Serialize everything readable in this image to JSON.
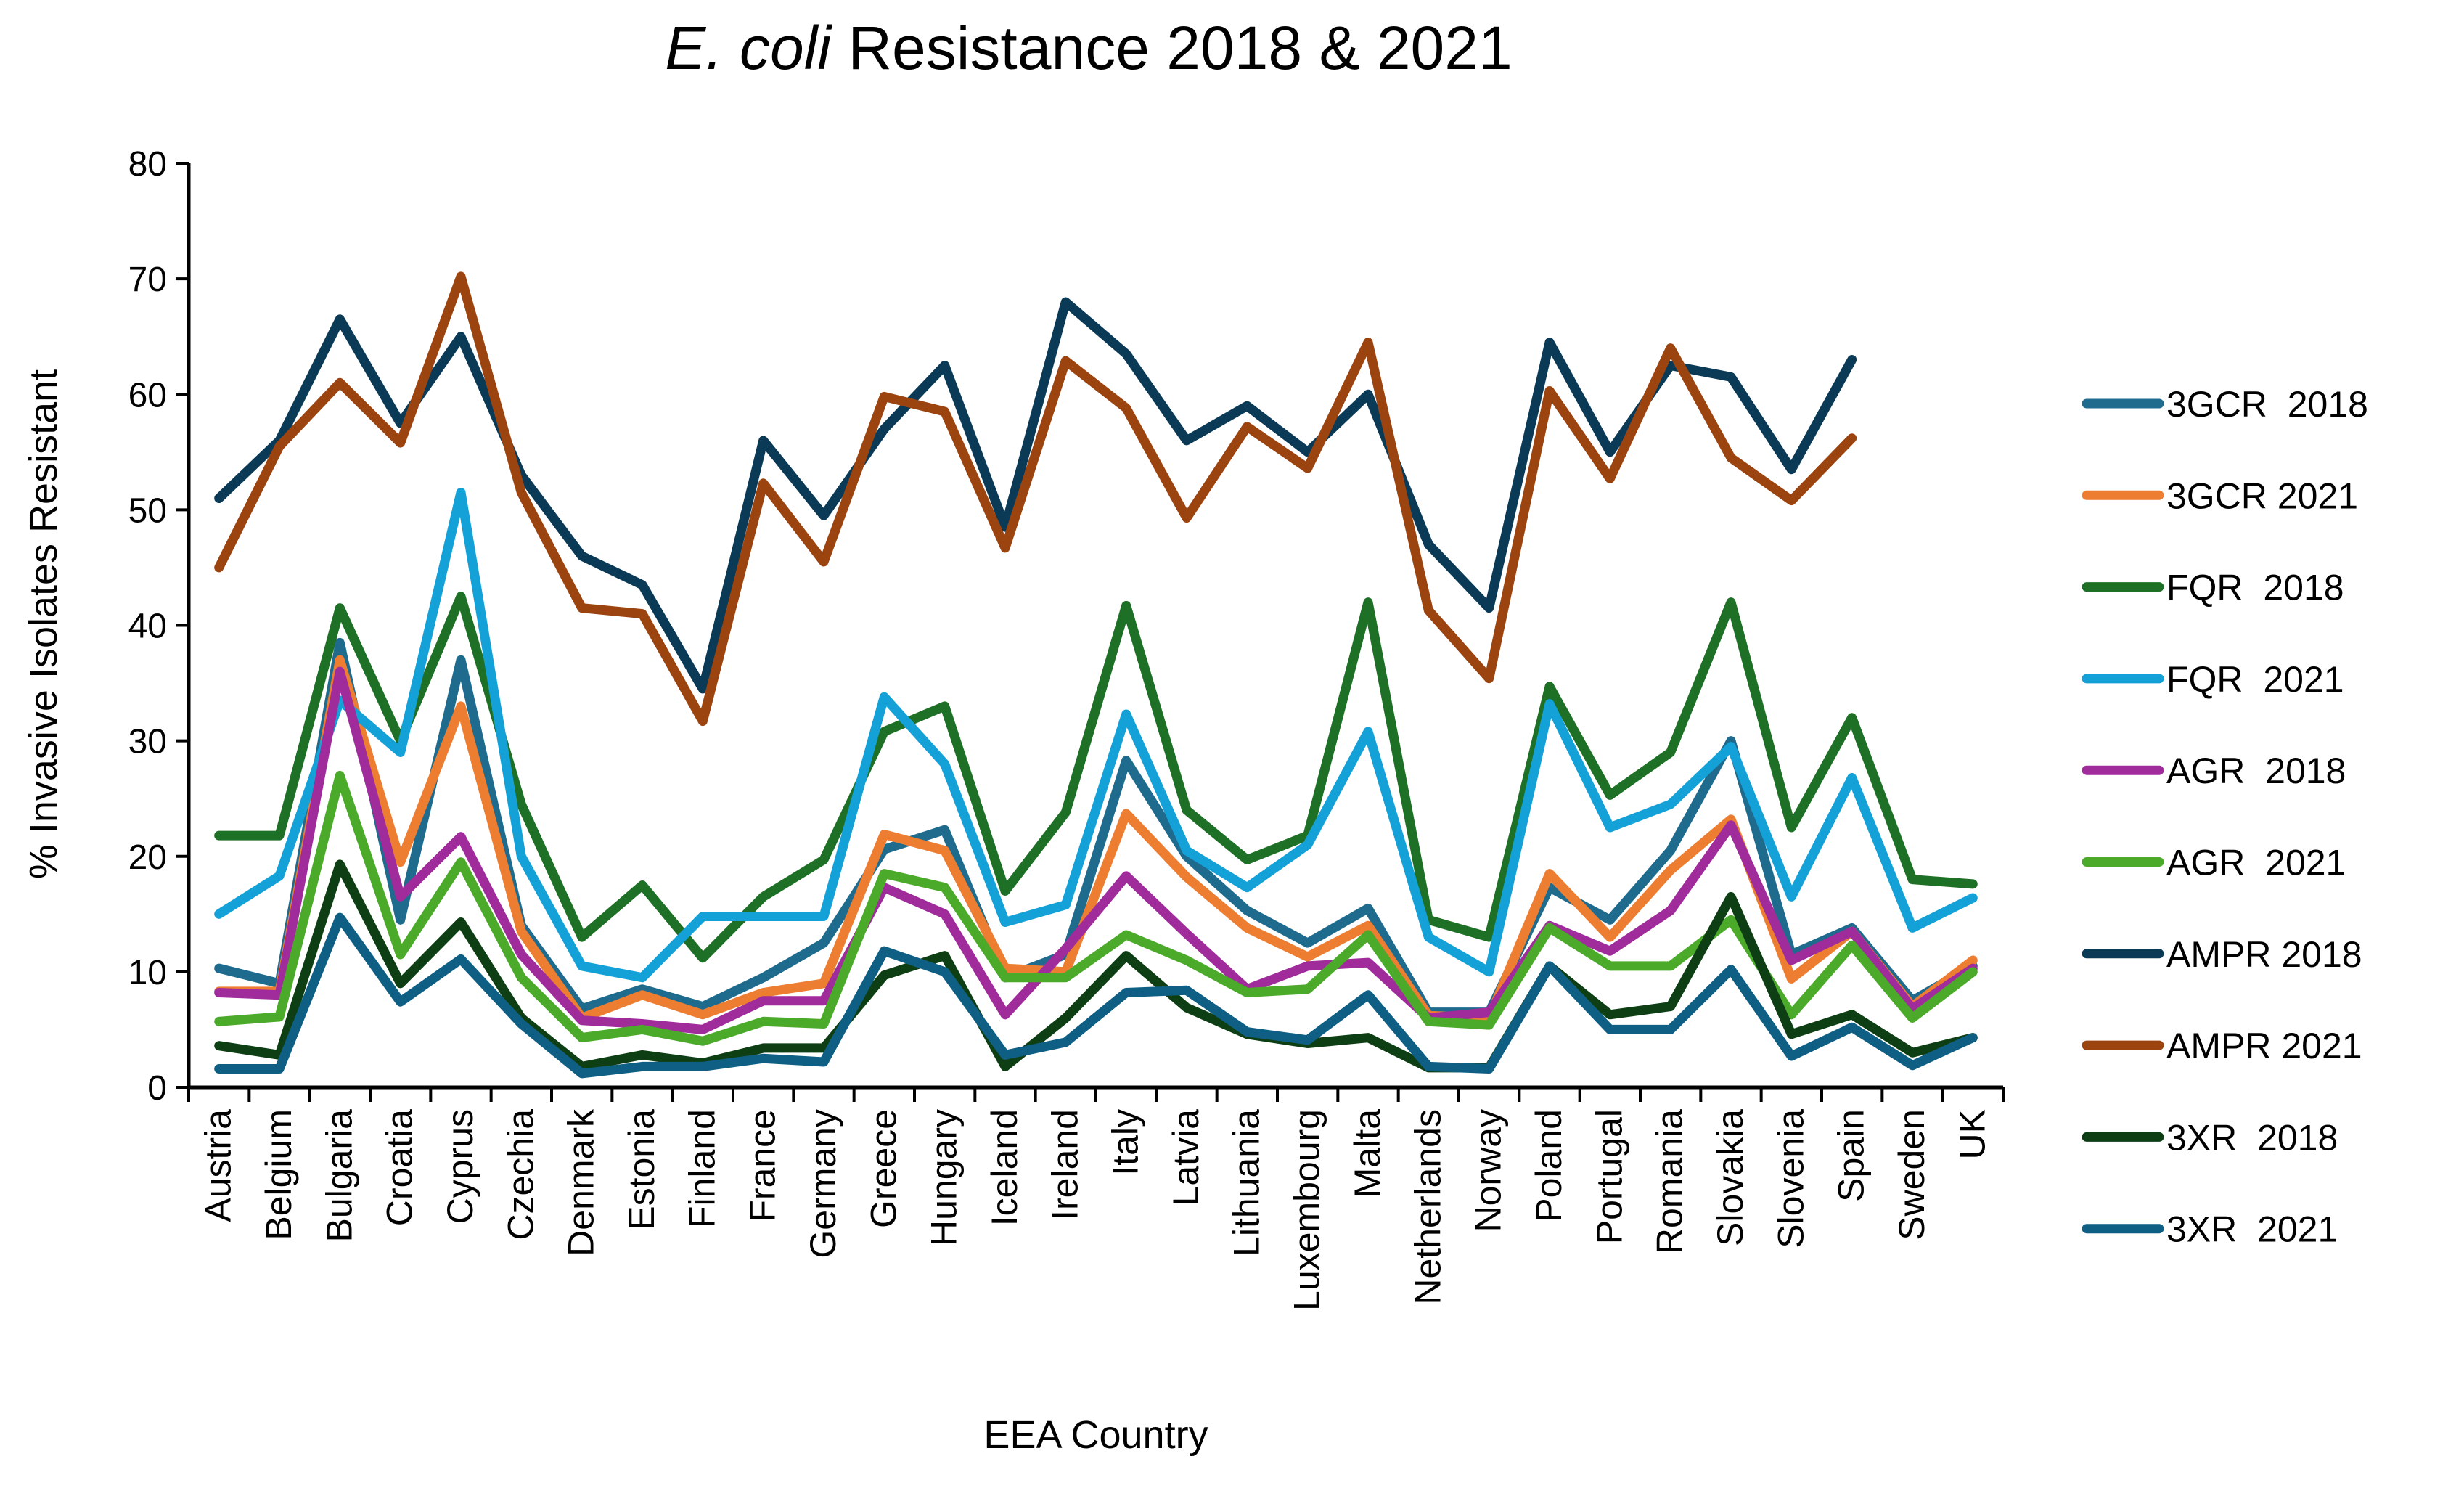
{
  "chart_data": {
    "type": "line",
    "title_italic": "E. coli",
    "title_rest": " Resistance 2018 & 2021",
    "xlabel": "EEA Country",
    "ylabel": "% Invasive Isolates Resistant",
    "ylim": [
      0,
      80
    ],
    "yticks": [
      0,
      10,
      20,
      30,
      40,
      50,
      60,
      70,
      80
    ],
    "grid": false,
    "legend_position": "right",
    "categories": [
      "Austria",
      "Belgium",
      "Bulgaria",
      "Croatia",
      "Cyprus",
      "Czechia",
      "Denmark",
      "Estonia",
      "Finland",
      "France",
      "Germany",
      "Greece",
      "Hungary",
      "Iceland",
      "Ireland",
      "Italy",
      "Latvia",
      "Lithuania",
      "Luxembourg",
      "Malta",
      "Netherlands",
      "Norway",
      "Poland",
      "Portugal",
      "Romania",
      "Slovakia",
      "Slovenia",
      "Spain",
      "Sweden",
      "UK"
    ],
    "series": [
      {
        "name": "3GCR  2018",
        "color": "#1f6b8e",
        "values": [
          10.3,
          9,
          38.5,
          14.5,
          37,
          14,
          6.8,
          8.5,
          7,
          9.5,
          12.5,
          20.6,
          22.3,
          9.5,
          11.5,
          28.3,
          20,
          15.3,
          12.5,
          15.5,
          6.5,
          6.5,
          17.3,
          14.5,
          20.5,
          30,
          11.5,
          13.8,
          7.5,
          10.5
        ]
      },
      {
        "name": "3GCR 2021",
        "color": "#ed7d31",
        "values": [
          8.3,
          8.3,
          37,
          19.5,
          33,
          13.5,
          6,
          8,
          6.3,
          8.2,
          9,
          21.9,
          20.5,
          10.3,
          10,
          23.7,
          18.2,
          13.8,
          11.3,
          14,
          6.2,
          6,
          18.5,
          13,
          18.8,
          23.2,
          9.4,
          13.5,
          7,
          11
        ]
      },
      {
        "name": "FQR  2018",
        "color": "#1e7026",
        "values": [
          21.8,
          21.8,
          41.5,
          30,
          42.5,
          24.5,
          13,
          17.5,
          11.2,
          16.5,
          19.7,
          30.8,
          33,
          17,
          23.8,
          41.7,
          24,
          19.7,
          21.8,
          42,
          14.5,
          13,
          34.7,
          25.3,
          29,
          42,
          22.5,
          32,
          18,
          17.6
        ]
      },
      {
        "name": "FQR  2021",
        "color": "#13a1d8",
        "values": [
          15,
          18.3,
          33.5,
          29,
          51.5,
          20,
          10.5,
          9.5,
          14.8,
          14.8,
          14.8,
          33.8,
          28,
          14.3,
          15.8,
          32.3,
          20.5,
          17.3,
          21,
          30.8,
          13,
          10,
          33.2,
          22.5,
          24.5,
          29.5,
          16.5,
          26.8,
          13.8,
          16.4
        ]
      },
      {
        "name": "AGR  2018",
        "color": "#a02b9b",
        "values": [
          8.2,
          8,
          36,
          16.5,
          21.7,
          11.5,
          5.8,
          5.5,
          5,
          7.5,
          7.5,
          17.3,
          15,
          6.3,
          12,
          18.3,
          13.3,
          8.5,
          10.5,
          10.8,
          6,
          6.5,
          14,
          11.8,
          15.3,
          22.7,
          11,
          13.5,
          6.8,
          10.3
        ]
      },
      {
        "name": "AGR  2021",
        "color": "#4caa2b",
        "values": [
          5.7,
          6.1,
          27,
          11.5,
          19.5,
          9.5,
          4.3,
          5,
          4,
          5.7,
          5.5,
          18.5,
          17.3,
          9.5,
          9.5,
          13.2,
          11,
          8.2,
          8.5,
          13.2,
          5.7,
          5.4,
          13.8,
          10.5,
          10.5,
          14.5,
          6.3,
          12.3,
          6,
          10
        ]
      },
      {
        "name": "AMPR 2018",
        "color": "#0b3a57",
        "values": [
          51,
          56,
          66.5,
          57.5,
          65,
          53,
          46,
          43.5,
          34.5,
          56,
          49.5,
          57,
          62.5,
          48.5,
          68,
          63.5,
          56,
          59,
          55,
          60,
          47,
          41.5,
          64.5,
          55,
          62.5,
          61.5,
          53.5,
          63,
          null,
          null
        ]
      },
      {
        "name": "AMPR 2021",
        "color": "#9c4410",
        "values": [
          45,
          55.5,
          61,
          55.8,
          70.2,
          51.5,
          41.5,
          41,
          31.7,
          52.3,
          45.5,
          59.8,
          58.5,
          46.7,
          62.9,
          58.8,
          49.3,
          57.2,
          53.6,
          64.5,
          41.3,
          35.4,
          60.3,
          52.7,
          64,
          54.5,
          50.8,
          56.2,
          null,
          null
        ]
      },
      {
        "name": "3XR  2018",
        "color": "#0e3f14",
        "values": [
          3.6,
          2.8,
          19.3,
          9,
          14.3,
          6,
          1.8,
          2.8,
          2.1,
          3.4,
          3.4,
          9.7,
          11.4,
          1.8,
          6,
          11.4,
          6.9,
          4.6,
          3.8,
          4.3,
          1.7,
          1.7,
          10.5,
          6.3,
          7,
          16.5,
          4.6,
          6.3,
          3,
          4.3
        ]
      },
      {
        "name": "3XR  2021",
        "color": "#0f5f85",
        "values": [
          1.6,
          1.6,
          14.7,
          7.4,
          11.1,
          5.5,
          1.2,
          1.8,
          1.8,
          2.5,
          2.2,
          11.8,
          10,
          2.8,
          3.9,
          8.2,
          8.4,
          4.8,
          4.1,
          8,
          1.8,
          1.6,
          10.5,
          5,
          5,
          10.2,
          2.7,
          5.2,
          1.9,
          4.3
        ]
      }
    ]
  }
}
